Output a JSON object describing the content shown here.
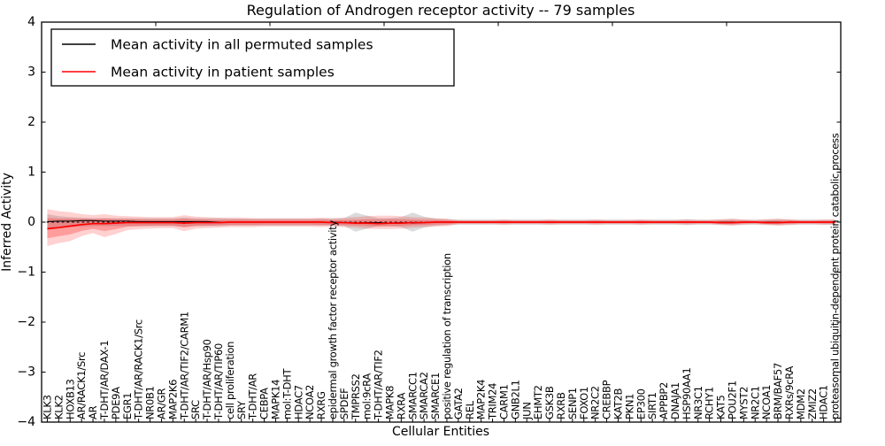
{
  "figure": {
    "title": "Regulation of Androgen receptor activity -- 79 samples"
  },
  "legend": {
    "entries": [
      {
        "label": "Mean activity in all permuted samples",
        "color": "#000000"
      },
      {
        "label": "Mean activity in patient samples",
        "color": "#ff0000"
      }
    ]
  },
  "axes": {
    "xlabel": "Cellular Entities",
    "ylabel": "Inferred Activity"
  },
  "chart_data": {
    "type": "line",
    "title": "Regulation of Androgen receptor activity -- 79 samples",
    "xlabel": "Cellular Entities",
    "ylabel": "Inferred Activity",
    "ylim": [
      -4,
      4
    ],
    "yticks": [
      -4,
      -3,
      -2,
      -1,
      0,
      1,
      2,
      3,
      4
    ],
    "ytick_labels": [
      "−4",
      "−3",
      "−2",
      "−1",
      "0",
      "1",
      "2",
      "3",
      "4"
    ],
    "x_major_ticks": [
      0,
      10,
      20,
      30,
      40,
      50,
      60,
      70
    ],
    "legend_position": "upper left",
    "grid": false,
    "x_categories": [
      "KLK3",
      "KLK2",
      "HOXB13",
      "AR/RACK1/Src",
      "AR",
      "T-DHT/AR/DAX-1",
      "PDE9A",
      "EGR1",
      "T-DHT/AR/RACK1/Src",
      "NR0B1",
      "AR/GR",
      "MAP2K6",
      "T-DHT/AR/TIF2/CARM1",
      "SRC",
      "T-DHT/AR/Hsp90",
      "T-DHT/AR/TIP60",
      "cell proliferation",
      "SRY",
      "T-DHT/AR",
      "CEBPA",
      "MAPK14",
      "mol:T-DHT",
      "HDAC7",
      "NCOA2",
      "RXRG",
      "epidermal growth factor receptor activity",
      "SPDEF",
      "TMPRSS2",
      "mol:9cRA",
      "T-DHT/AR/TIF2",
      "MAPK8",
      "RXRA",
      "SMARCC1",
      "SMARCA2",
      "SMARCE1",
      "positive regulation of transcription",
      "GATA2",
      "REL",
      "MAP2K4",
      "TRIM24",
      "CARM1",
      "GNB2L1",
      "JUN",
      "EHMT2",
      "GSK3B",
      "RXRB",
      "SENP1",
      "FOXO1",
      "NR2C2",
      "CREBBP",
      "KAT2B",
      "PKN1",
      "EP300",
      "SIRT1",
      "APPBP2",
      "DNAJA1",
      "HSP90AA1",
      "NR3C1",
      "RCHY1",
      "KAT5",
      "POU2F1",
      "MYST2",
      "NR2C1",
      "NCOA1",
      "BRM/BAF57",
      "RXRs/9cRA",
      "MDM2",
      "ZMIZ2",
      "HDAC1",
      "proteasomal ubiquitin-dependent protein catabolic process"
    ],
    "series": [
      {
        "name": "Mean activity in all permuted samples",
        "color": "#000000",
        "values": [
          0.01,
          0.02,
          0.02,
          0.03,
          0.03,
          0.02,
          0.02,
          0.02,
          0.01,
          0.01,
          0.01,
          0.01,
          0.01,
          0.01,
          0.01,
          0.0,
          0.0,
          0.0,
          0.0,
          0.0,
          0.0,
          0.0,
          0.0,
          0.0,
          0.0,
          0.0,
          -0.01,
          -0.02,
          -0.01,
          -0.01,
          -0.02,
          -0.01,
          -0.02,
          -0.01,
          0.0,
          0.0,
          0.0,
          0.0,
          0.0,
          0.0,
          0.0,
          0.0,
          0.0,
          0.0,
          0.0,
          0.0,
          0.0,
          0.0,
          0.0,
          0.0,
          0.0,
          0.0,
          0.0,
          0.0,
          0.0,
          0.0,
          0.0,
          0.0,
          0.0,
          0.0,
          0.0,
          0.0,
          0.0,
          0.0,
          0.0,
          0.0,
          0.0,
          0.0,
          0.0,
          0.0
        ]
      },
      {
        "name": "Mean activity in patient samples",
        "color": "#ff0000",
        "values": [
          -0.13,
          -0.11,
          -0.08,
          -0.05,
          -0.03,
          -0.03,
          -0.02,
          -0.01,
          -0.01,
          -0.01,
          -0.01,
          -0.01,
          -0.02,
          -0.01,
          -0.01,
          -0.01,
          0.0,
          0.0,
          0.0,
          0.0,
          0.0,
          0.0,
          0.0,
          0.0,
          0.0,
          -0.01,
          -0.01,
          -0.02,
          -0.02,
          -0.03,
          -0.02,
          -0.02,
          -0.01,
          -0.01,
          0.0,
          0.0,
          0.0,
          0.0,
          0.0,
          0.0,
          0.0,
          0.0,
          0.0,
          0.0,
          0.0,
          0.0,
          0.0,
          0.0,
          0.0,
          0.0,
          0.0,
          0.0,
          0.0,
          0.0,
          0.0,
          0.0,
          0.0,
          0.0,
          0.0,
          -0.01,
          -0.01,
          0.0,
          0.0,
          -0.01,
          -0.01,
          0.0,
          0.0,
          0.0,
          0.0,
          0.0
        ]
      }
    ],
    "bands": [
      {
        "name": "permuted samples range",
        "color": "#999999",
        "alpha": 0.35,
        "upper": [
          0.16,
          0.12,
          0.1,
          0.09,
          0.08,
          0.08,
          0.08,
          0.08,
          0.08,
          0.08,
          0.08,
          0.08,
          0.09,
          0.08,
          0.08,
          0.08,
          0.07,
          0.07,
          0.07,
          0.07,
          0.07,
          0.07,
          0.07,
          0.07,
          0.07,
          0.07,
          0.08,
          0.19,
          0.13,
          0.08,
          0.08,
          0.1,
          0.19,
          0.11,
          0.07,
          0.06,
          0.05,
          0.05,
          0.05,
          0.05,
          0.05,
          0.05,
          0.05,
          0.05,
          0.05,
          0.05,
          0.05,
          0.05,
          0.05,
          0.05,
          0.05,
          0.05,
          0.05,
          0.05,
          0.05,
          0.05,
          0.06,
          0.05,
          0.05,
          0.05,
          0.06,
          0.05,
          0.05,
          0.05,
          0.06,
          0.05,
          0.05,
          0.05,
          0.05,
          0.05
        ],
        "lower": [
          -0.16,
          -0.12,
          -0.1,
          -0.09,
          -0.08,
          -0.08,
          -0.08,
          -0.08,
          -0.08,
          -0.08,
          -0.08,
          -0.08,
          -0.09,
          -0.08,
          -0.08,
          -0.08,
          -0.07,
          -0.07,
          -0.07,
          -0.07,
          -0.07,
          -0.07,
          -0.07,
          -0.07,
          -0.07,
          -0.07,
          -0.08,
          -0.19,
          -0.13,
          -0.08,
          -0.08,
          -0.1,
          -0.19,
          -0.11,
          -0.07,
          -0.06,
          -0.05,
          -0.05,
          -0.05,
          -0.05,
          -0.05,
          -0.05,
          -0.05,
          -0.05,
          -0.05,
          -0.05,
          -0.05,
          -0.05,
          -0.05,
          -0.05,
          -0.05,
          -0.05,
          -0.05,
          -0.05,
          -0.05,
          -0.05,
          -0.06,
          -0.05,
          -0.05,
          -0.05,
          -0.06,
          -0.05,
          -0.05,
          -0.05,
          -0.06,
          -0.05,
          -0.05,
          -0.05,
          -0.05,
          -0.05
        ]
      },
      {
        "name": "patient samples range",
        "color": "#ff0000",
        "alpha": 0.18,
        "upper": [
          0.26,
          0.22,
          0.2,
          0.16,
          0.14,
          0.16,
          0.13,
          0.12,
          0.11,
          0.1,
          0.1,
          0.1,
          0.14,
          0.11,
          0.1,
          0.09,
          0.09,
          0.09,
          0.08,
          0.08,
          0.08,
          0.08,
          0.08,
          0.08,
          0.09,
          0.08,
          0.09,
          0.1,
          0.12,
          0.13,
          0.13,
          0.12,
          0.1,
          0.09,
          0.08,
          0.07,
          0.04,
          0.04,
          0.04,
          0.04,
          0.05,
          0.04,
          0.04,
          0.04,
          0.05,
          0.04,
          0.04,
          0.04,
          0.05,
          0.04,
          0.04,
          0.04,
          0.05,
          0.04,
          0.04,
          0.04,
          0.05,
          0.04,
          0.04,
          0.06,
          0.07,
          0.05,
          0.04,
          0.06,
          0.07,
          0.06,
          0.04,
          0.04,
          0.05,
          0.05
        ],
        "lower": [
          -0.48,
          -0.42,
          -0.38,
          -0.28,
          -0.22,
          -0.3,
          -0.24,
          -0.16,
          -0.14,
          -0.13,
          -0.12,
          -0.12,
          -0.18,
          -0.13,
          -0.12,
          -0.11,
          -0.1,
          -0.1,
          -0.1,
          -0.09,
          -0.09,
          -0.09,
          -0.09,
          -0.09,
          -0.1,
          -0.09,
          -0.1,
          -0.11,
          -0.13,
          -0.14,
          -0.14,
          -0.13,
          -0.11,
          -0.1,
          -0.09,
          -0.08,
          -0.04,
          -0.04,
          -0.04,
          -0.04,
          -0.05,
          -0.04,
          -0.04,
          -0.04,
          -0.05,
          -0.04,
          -0.04,
          -0.04,
          -0.05,
          -0.04,
          -0.04,
          -0.04,
          -0.05,
          -0.04,
          -0.04,
          -0.04,
          -0.05,
          -0.04,
          -0.04,
          -0.06,
          -0.07,
          -0.05,
          -0.04,
          -0.06,
          -0.07,
          -0.06,
          -0.04,
          -0.04,
          -0.05,
          -0.05
        ]
      }
    ],
    "zero_reference_line": {
      "style": "dashed",
      "color": "#000000",
      "y": 0
    }
  }
}
